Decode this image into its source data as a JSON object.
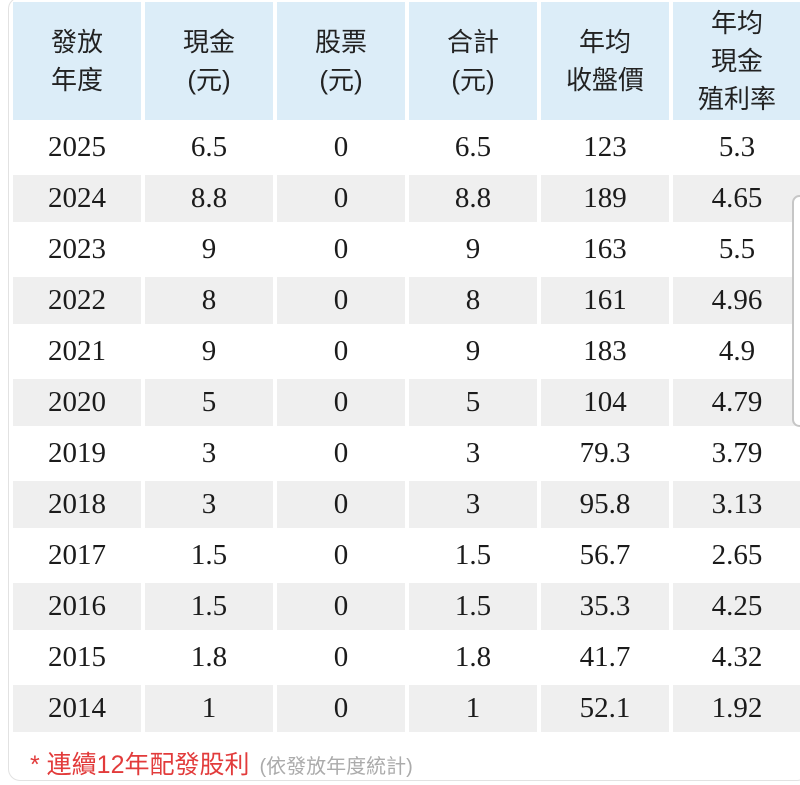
{
  "colors": {
    "header_bg": "#dcedf8",
    "stripe_bg": "#efefef",
    "text": "#1b1b1b",
    "header_text": "#222222",
    "accent_red": "#e23b3b",
    "muted_gray": "#ababab",
    "border": "#e2e2e2",
    "scrollbar_border": "#c6c6c6"
  },
  "table": {
    "columns": [
      {
        "id": "year",
        "lines": [
          "發放",
          "年度"
        ]
      },
      {
        "id": "cash",
        "lines": [
          "現金",
          "(元)"
        ]
      },
      {
        "id": "stock",
        "lines": [
          "股票",
          "(元)"
        ]
      },
      {
        "id": "total",
        "lines": [
          "合計",
          "(元)"
        ]
      },
      {
        "id": "avg-close",
        "lines": [
          "年均",
          "收盤價"
        ]
      },
      {
        "id": "avg-yield",
        "lines": [
          "年均",
          "現金",
          "殖利率"
        ]
      }
    ],
    "rows": [
      [
        "2025",
        "6.5",
        "0",
        "6.5",
        "123",
        "5.3"
      ],
      [
        "2024",
        "8.8",
        "0",
        "8.8",
        "189",
        "4.65"
      ],
      [
        "2023",
        "9",
        "0",
        "9",
        "163",
        "5.5"
      ],
      [
        "2022",
        "8",
        "0",
        "8",
        "161",
        "4.96"
      ],
      [
        "2021",
        "9",
        "0",
        "9",
        "183",
        "4.9"
      ],
      [
        "2020",
        "5",
        "0",
        "5",
        "104",
        "4.79"
      ],
      [
        "2019",
        "3",
        "0",
        "3",
        "79.3",
        "3.79"
      ],
      [
        "2018",
        "3",
        "0",
        "3",
        "95.8",
        "3.13"
      ],
      [
        "2017",
        "1.5",
        "0",
        "1.5",
        "56.7",
        "2.65"
      ],
      [
        "2016",
        "1.5",
        "0",
        "1.5",
        "35.3",
        "4.25"
      ],
      [
        "2015",
        "1.8",
        "0",
        "1.8",
        "41.7",
        "4.32"
      ],
      [
        "2014",
        "1",
        "0",
        "1",
        "52.1",
        "1.92"
      ]
    ]
  },
  "footnote": {
    "highlight": "* 連續12年配發股利",
    "note": "(依發放年度統計)"
  }
}
